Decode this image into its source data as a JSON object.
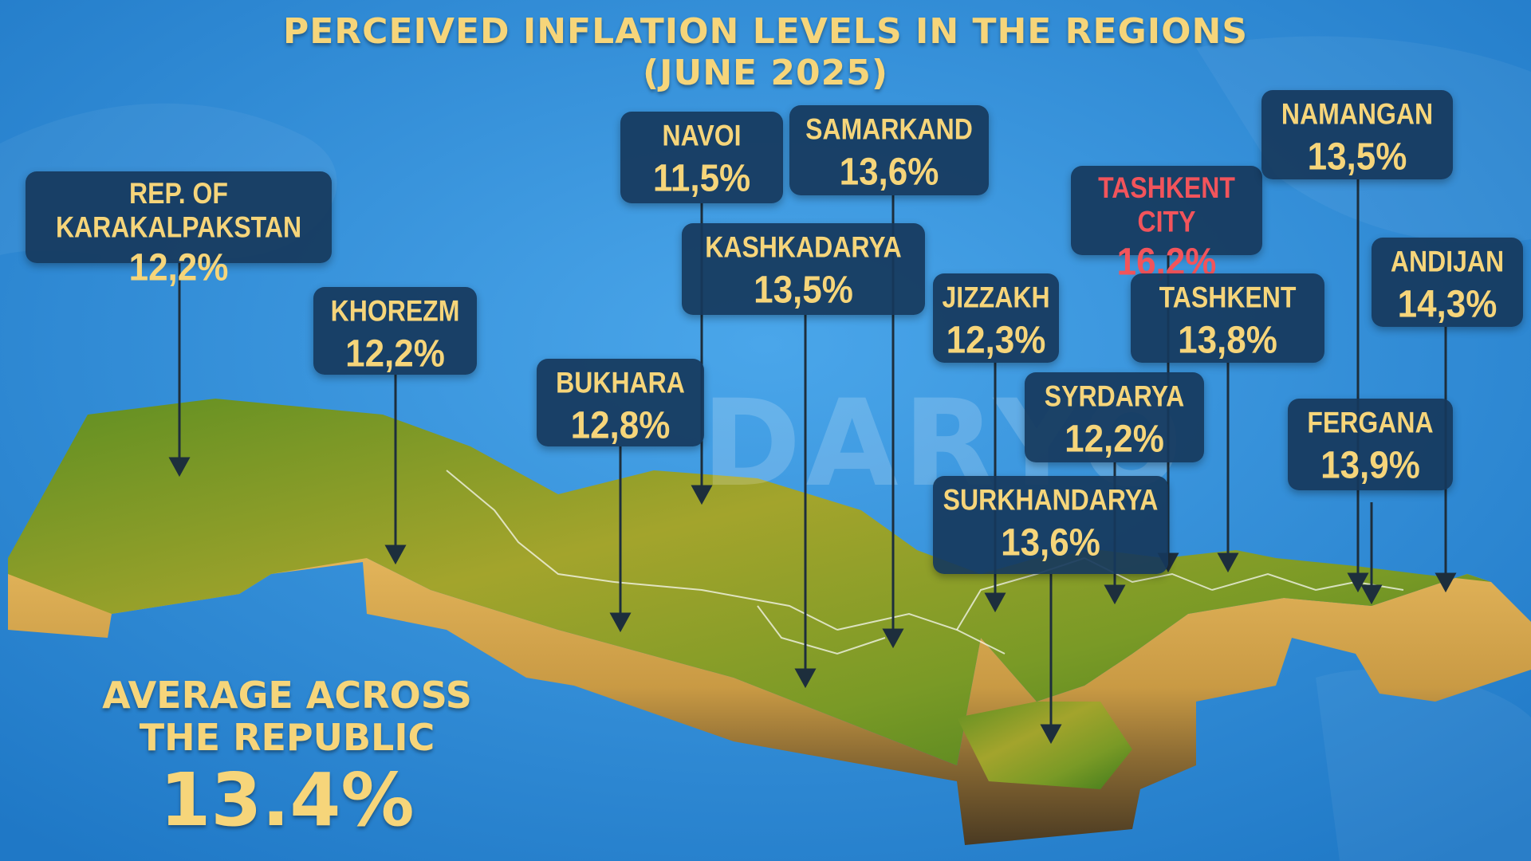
{
  "header": {
    "title_line1": "PERCEIVED INFLATION LEVELS IN THE REGIONS",
    "title_line2": "(JUNE 2025)"
  },
  "regions": [
    {
      "name": "REP. OF KARAKALPAKSTAN",
      "value": "12,2%"
    },
    {
      "name": "KHOREZM",
      "value": "12,2%"
    },
    {
      "name": "NAVOI",
      "value": "11,5%"
    },
    {
      "name": "SAMARKAND",
      "value": "13,6%"
    },
    {
      "name": "KASHKADARYA",
      "value": "13,5%"
    },
    {
      "name": "BUKHARA",
      "value": "12,8%"
    },
    {
      "name": "JIZZAKH",
      "value": "12,3%"
    },
    {
      "name": "SYRDARYA",
      "value": "12,2%"
    },
    {
      "name": "SURKHANDARYA",
      "value": "13,6%"
    },
    {
      "name": "TASHKENT CITY",
      "value": "16,2%"
    },
    {
      "name": "TASHKENT",
      "value": "13,8%"
    },
    {
      "name": "NAMANGAN",
      "value": "13,5%"
    },
    {
      "name": "ANDIJAN",
      "value": "14,3%"
    },
    {
      "name": "FERGANA",
      "value": "13,9%"
    }
  ],
  "average": {
    "label_line1": "AVERAGE ACROSS",
    "label_line2": "THE REPUBLIC",
    "value": "13.4%"
  },
  "watermark": "DARYO",
  "colors": {
    "ocean": "#2f8fd8",
    "label_box": "#16385c",
    "text_gold": "#f6d57a",
    "highlight_red": "#f2545b"
  }
}
